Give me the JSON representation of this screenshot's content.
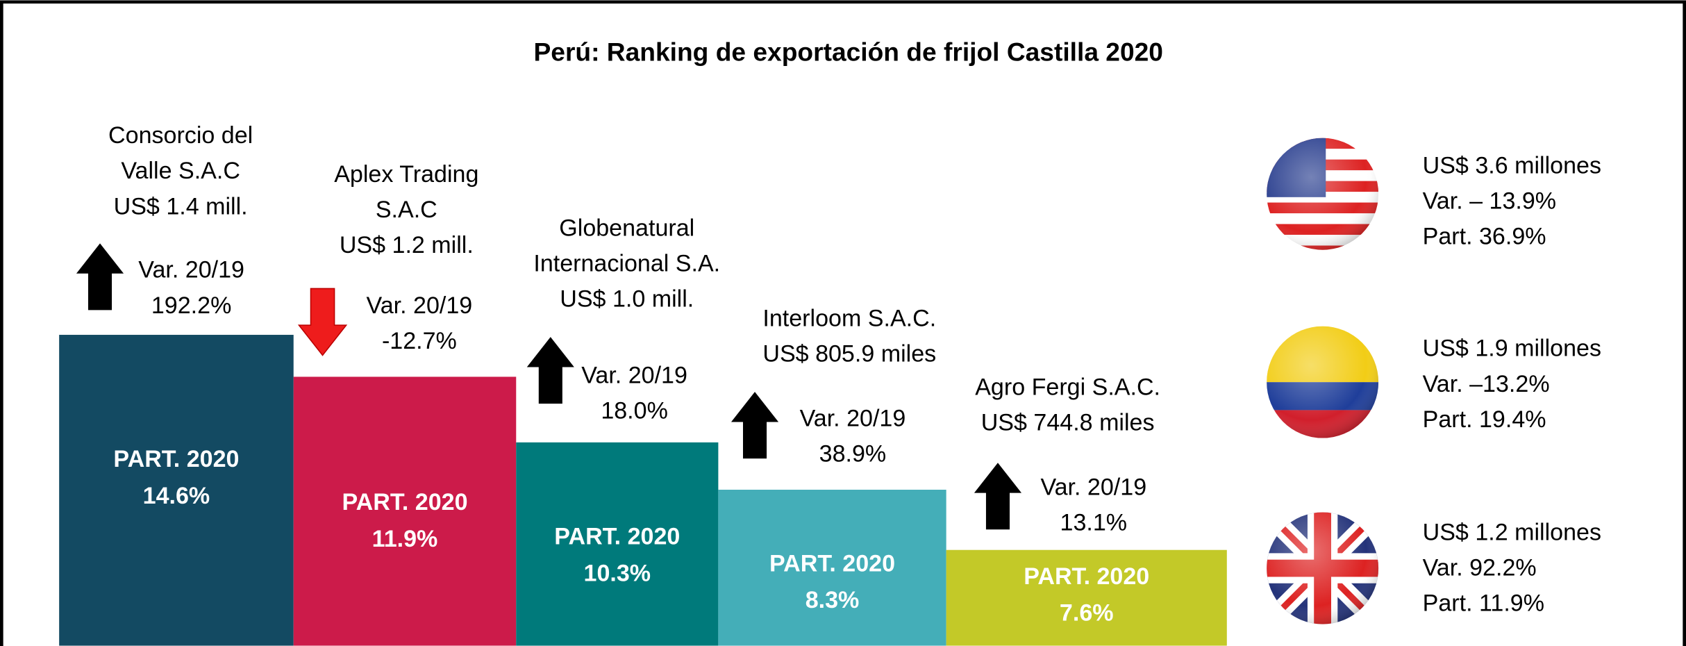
{
  "title": "Perú: Ranking de exportación de frijol Castilla 2020",
  "companies": [
    {
      "name_lines": [
        "Consorcio del",
        "Valle S.A.C"
      ],
      "value": "US$ 1.4 mill.",
      "var_label": "Var. 20/19",
      "var": "192.2%",
      "part_label": "PART. 2020",
      "part": "14.6%",
      "trend": "up",
      "color": "#134a62"
    },
    {
      "name_lines": [
        "Aplex Trading",
        "S.A.C"
      ],
      "value": "US$ 1.2 mill.",
      "var_label": "Var. 20/19",
      "var": "-12.7%",
      "part_label": "PART. 2020",
      "part": "11.9%",
      "trend": "down",
      "color": "#cc1b4a"
    },
    {
      "name_lines": [
        "Globenatural",
        "Internacional S.A."
      ],
      "value": "US$ 1.0 mill.",
      "var_label": "Var. 20/19",
      "var": "18.0%",
      "part_label": "PART. 2020",
      "part": "10.3%",
      "trend": "up",
      "color": "#007a7b"
    },
    {
      "name_lines": [
        "Interloom S.A.C."
      ],
      "value": "US$ 805.9 miles",
      "var_label": "Var. 20/19",
      "var": "38.9%",
      "part_label": "PART. 2020",
      "part": "8.3%",
      "trend": "up",
      "color": "#44aeb8"
    },
    {
      "name_lines": [
        "Agro Fergi S.A.C."
      ],
      "value": "US$ 744.8 miles",
      "var_label": "Var. 20/19",
      "var": "13.1%",
      "part_label": "PART.  2020",
      "part": "7.6%",
      "trend": "up",
      "color": "#c3c928"
    }
  ],
  "markets": [
    {
      "value": "US$ 3.6 millones",
      "var": "Var. – 13.9%",
      "part": "Part. 36.9%"
    },
    {
      "value": "US$ 1.9 millones",
      "var": "Var. –13.2%",
      "part": "Part. 19.4%"
    },
    {
      "value": "US$ 1.2 millones",
      "var": "Var. 92.2%",
      "part": "Part. 11.9%"
    }
  ]
}
